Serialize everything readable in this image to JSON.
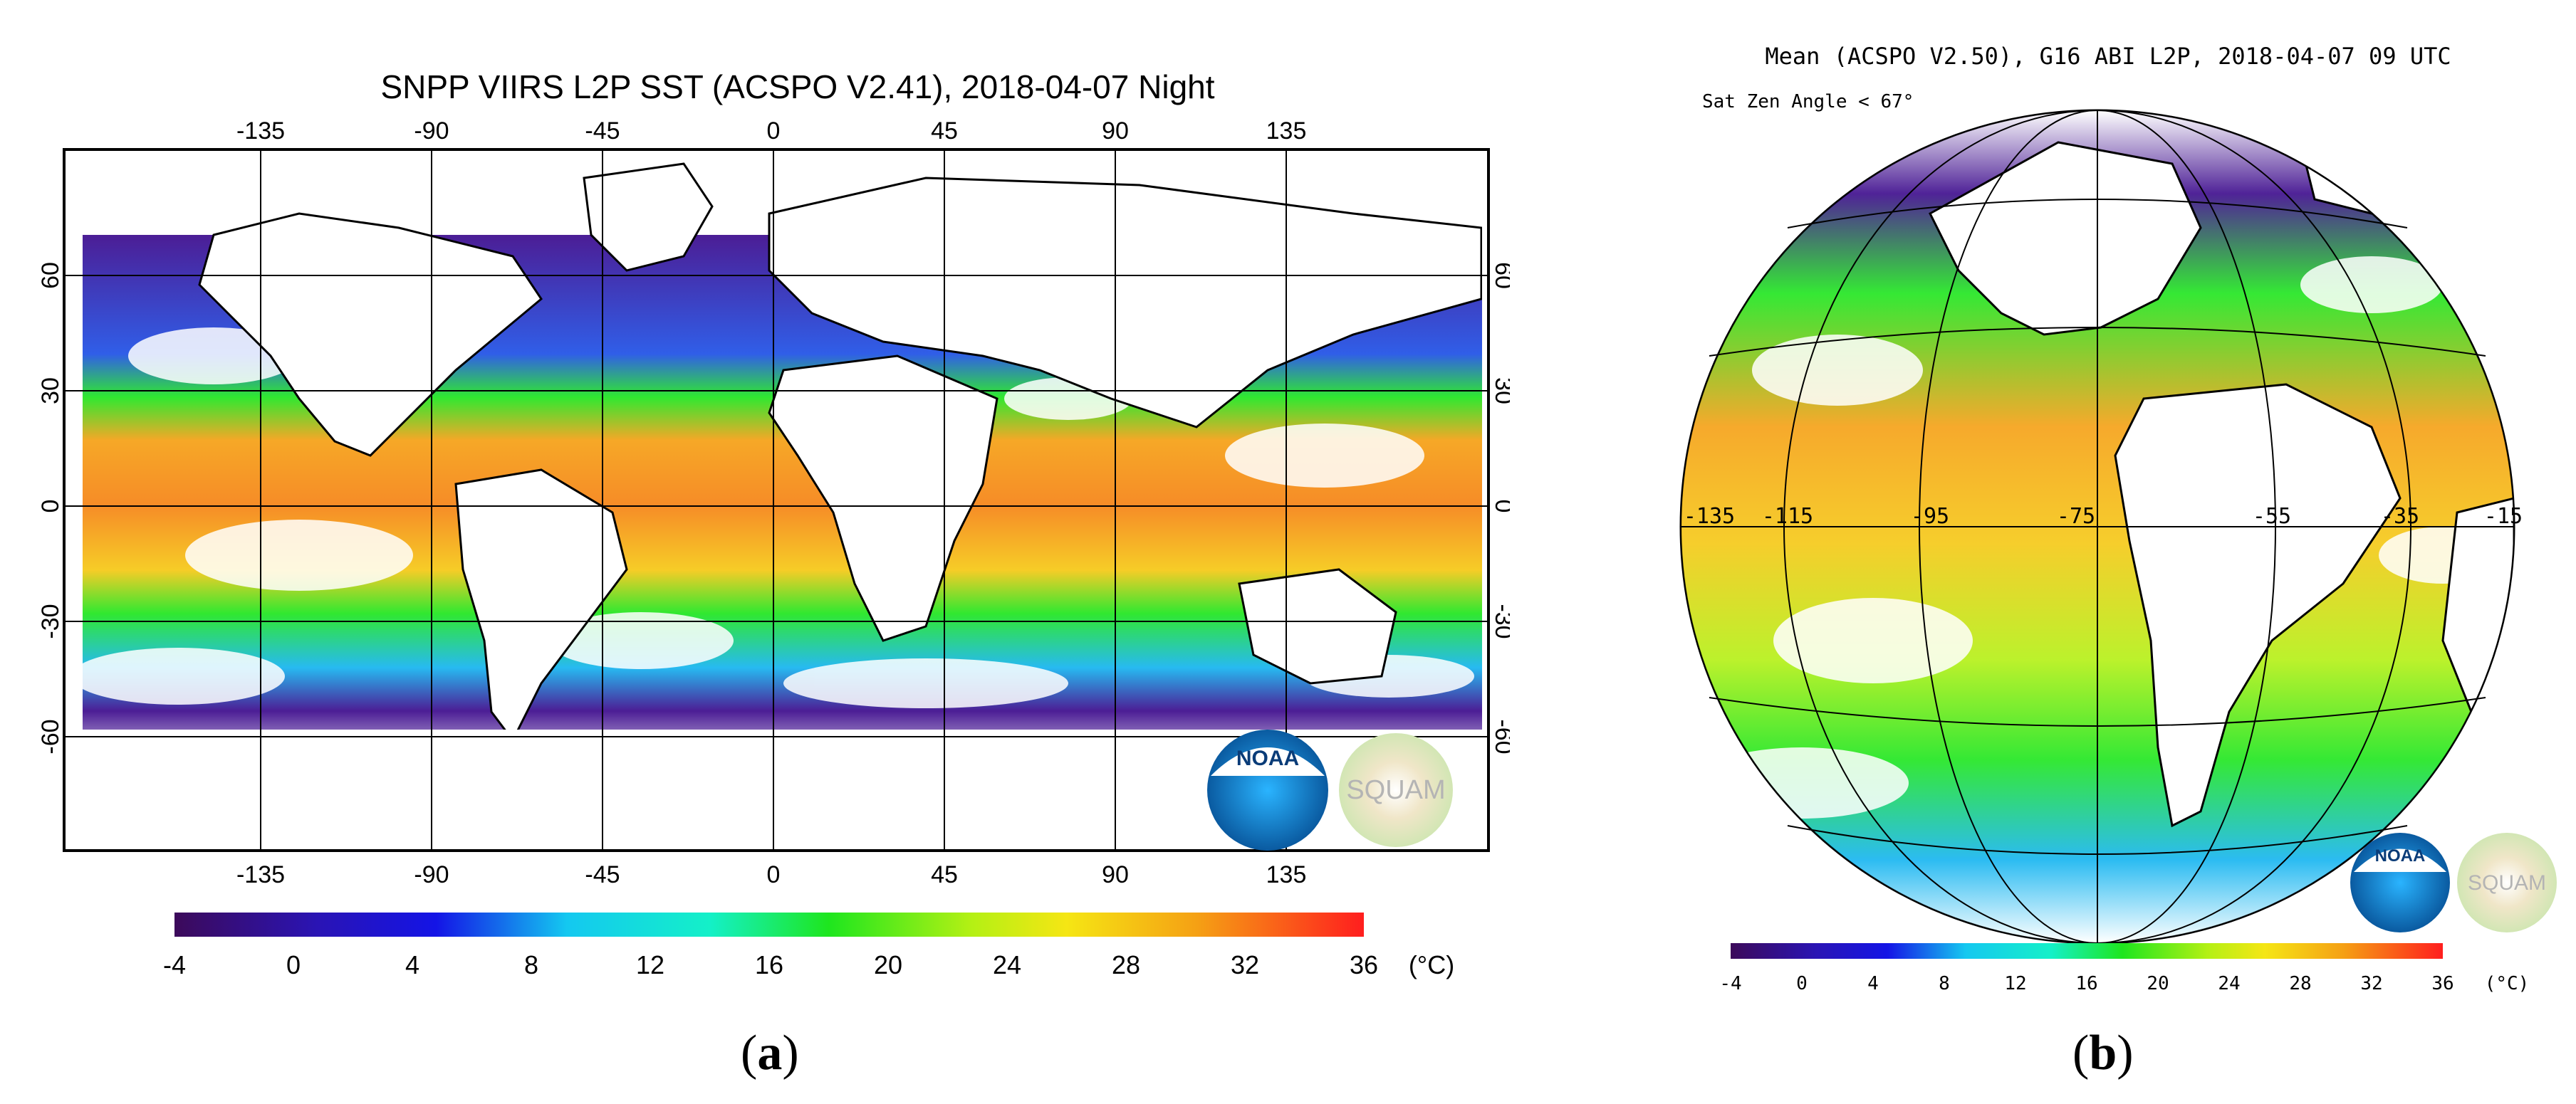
{
  "panel_a": {
    "title": "SNPP VIIRS L2P SST (ACSPO V2.41), 2018-04-07 Night",
    "lon_labels": [
      "-135",
      "-90",
      "-45",
      "0",
      "45",
      "90",
      "135"
    ],
    "lon_values": [
      -135,
      -90,
      -45,
      0,
      45,
      90,
      135
    ],
    "lat_labels": [
      "60",
      "30",
      "0",
      "-30",
      "-60"
    ],
    "lat_values": [
      60,
      30,
      0,
      -30,
      -60
    ],
    "colorbar_ticks": [
      "-4",
      "0",
      "4",
      "8",
      "12",
      "16",
      "20",
      "24",
      "28",
      "32",
      "36"
    ],
    "colorbar_unit": "(°C)",
    "noaa_logo_text": "NOAA",
    "squam_logo_text": "SQUAM",
    "panel_label": "a"
  },
  "panel_b": {
    "title": "Mean (ACSPO V2.50), G16 ABI L2P, 2018-04-07 09 UTC",
    "subtitle": "Sat Zen Angle < 67°",
    "lon_labels": [
      "-135",
      "-115",
      "-95",
      "-75",
      "-55",
      "-35",
      "-15"
    ],
    "colorbar_ticks": [
      "-4",
      "0",
      "4",
      "8",
      "12",
      "16",
      "20",
      "24",
      "28",
      "32",
      "36"
    ],
    "colorbar_unit": "(°C)",
    "noaa_logo_text": "NOAA",
    "squam_logo_text": "SQUAM",
    "panel_label": "b"
  },
  "colorbar_range": [
    -4,
    36
  ],
  "colors": {
    "purple": "#3c0a5a",
    "blue": "#1414e6",
    "cyan": "#14dcf0",
    "green": "#1ee61e",
    "yellow": "#f5e614",
    "orange": "#f5a014",
    "red": "#ff1e1e"
  }
}
